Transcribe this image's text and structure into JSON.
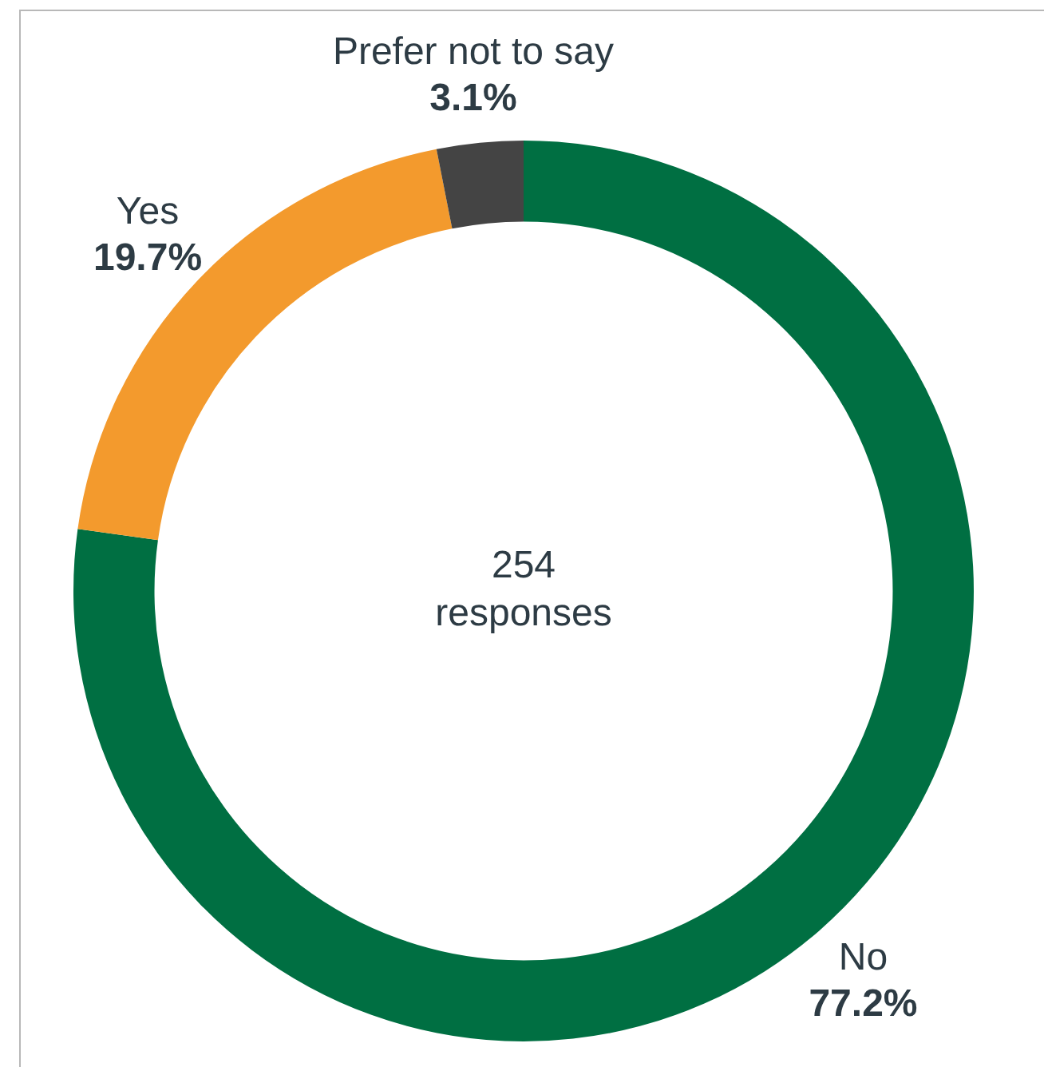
{
  "chart_data": {
    "type": "donut",
    "categories": [
      "No",
      "Yes",
      "Prefer not to say"
    ],
    "values": [
      77.2,
      19.7,
      3.1
    ],
    "value_labels": [
      "77.2%",
      "19.7%",
      "3.1%"
    ],
    "colors": [
      "#006f42",
      "#f39a2d",
      "#444444"
    ],
    "annotations": [
      "254 responses"
    ],
    "legend": false
  }
}
